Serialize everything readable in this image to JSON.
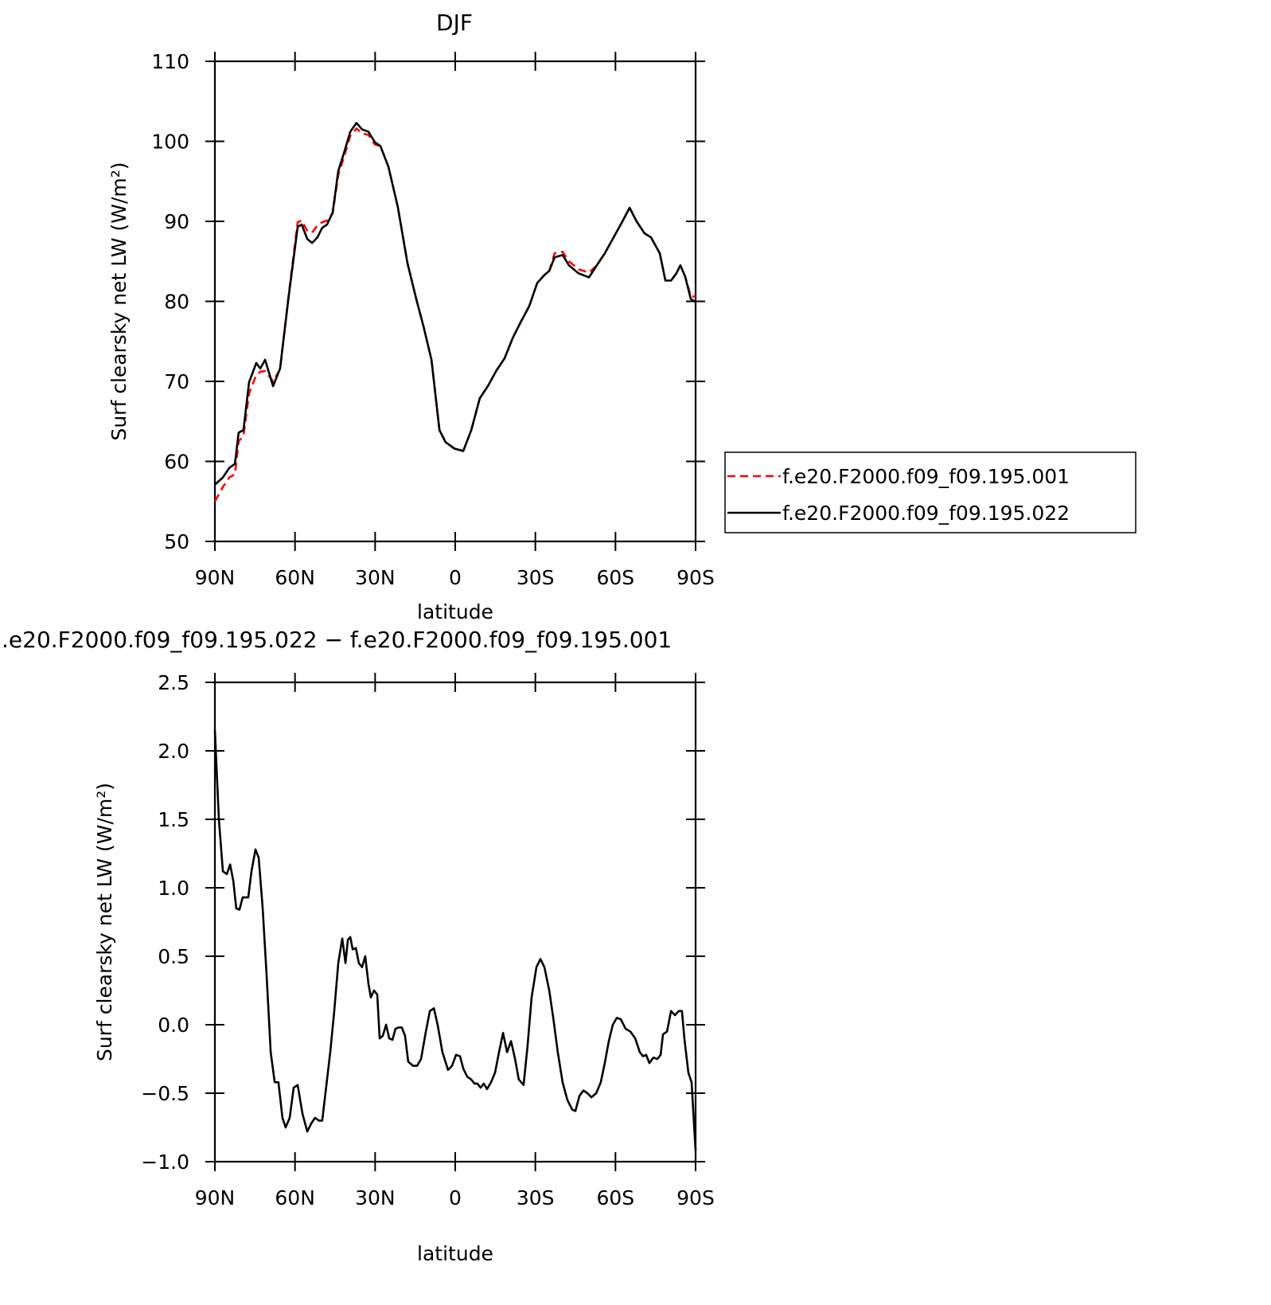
{
  "chart_data": [
    {
      "type": "line",
      "title": "DJF",
      "x_label": "latitude",
      "y_label": "Surf clearsky net LW (W/m²)",
      "xlim": [
        90,
        -90
      ],
      "xticks": [
        {
          "value": 90,
          "label": "90N"
        },
        {
          "value": 60,
          "label": "60N"
        },
        {
          "value": 30,
          "label": "30N"
        },
        0,
        {
          "value": -30,
          "label": "30S"
        },
        {
          "value": -60,
          "label": "60S"
        },
        {
          "value": -90,
          "label": "90S"
        }
      ],
      "ylim": [
        50,
        110
      ],
      "yticks": [
        50,
        60,
        70,
        80,
        90,
        100,
        110
      ],
      "legend": "right",
      "x": [
        90,
        87.0,
        84.6,
        82.5,
        81.1,
        79.3,
        77.2,
        74.5,
        73.0,
        71.2,
        68.2,
        65.6,
        62.3,
        59.0,
        57.5,
        55.4,
        53.6,
        51.6,
        49.8,
        48.0,
        45.9,
        43.8,
        41.7,
        39.3,
        37.0,
        34.9,
        32.5,
        30.1,
        28.0,
        25.0,
        21.5,
        17.9,
        14.6,
        11.9,
        8.9,
        5.9,
        3.6,
        0.3,
        -3.0,
        -6.0,
        -9.2,
        -12.2,
        -15.5,
        -18.5,
        -21.5,
        -24.5,
        -27.7,
        -30.7,
        -33.4,
        -35.2,
        -37.2,
        -40.2,
        -42.6,
        -46.2,
        -50.1,
        -53.0,
        -56.0,
        -59.3,
        -62.3,
        -65.3,
        -67.9,
        -70.9,
        -73.3,
        -76.6,
        -78.7,
        -80.8,
        -82.8,
        -84.3,
        -86.1,
        -88.2,
        -90
      ],
      "series": [
        {
          "name": "f.e20.F2000.f09_f09.195.001",
          "color": "#ff0000",
          "linestyle": "dashed",
          "values": [
            55.0,
            56.8,
            58.0,
            58.4,
            62.5,
            63.2,
            68.5,
            70.8,
            71.2,
            71.3,
            70.0,
            71.5,
            81.0,
            89.9,
            90.1,
            88.8,
            88.6,
            89.5,
            89.9,
            90.1,
            91.0,
            95.8,
            98.0,
            100.7,
            101.6,
            101.0,
            100.8,
            99.6,
            99.4,
            96.8,
            91.8,
            84.8,
            80.3,
            76.9,
            72.7,
            63.9,
            62.4,
            61.6,
            61.3,
            63.9,
            67.9,
            69.4,
            71.4,
            72.9,
            75.4,
            77.4,
            79.4,
            82.3,
            83.3,
            83.8,
            86.0,
            86.2,
            85.0,
            84.0,
            83.6,
            84.5,
            86.0,
            88.0,
            89.8,
            91.7,
            90.0,
            88.5,
            88.0,
            86.0,
            82.6,
            82.6,
            83.5,
            84.5,
            83.1,
            80.6,
            80.6
          ]
        },
        {
          "name": "f.e20.F2000.f09_f09.195.022",
          "color": "#000000",
          "linestyle": "solid",
          "values": [
            57.1,
            58.0,
            59.2,
            59.7,
            63.6,
            63.9,
            69.9,
            72.3,
            71.6,
            72.7,
            69.4,
            71.6,
            80.8,
            89.3,
            89.6,
            87.8,
            87.3,
            88.0,
            89.2,
            89.6,
            91.1,
            96.3,
            98.5,
            101.2,
            102.3,
            101.5,
            101.2,
            99.9,
            99.4,
            96.8,
            91.8,
            84.8,
            80.3,
            76.9,
            72.7,
            63.9,
            62.4,
            61.6,
            61.3,
            63.9,
            67.9,
            69.4,
            71.4,
            72.9,
            75.4,
            77.4,
            79.4,
            82.3,
            83.3,
            83.8,
            85.5,
            85.8,
            84.5,
            83.5,
            83.0,
            84.5,
            86.0,
            88.0,
            89.8,
            91.7,
            90.0,
            88.5,
            88.0,
            86.0,
            82.6,
            82.6,
            83.5,
            84.5,
            83.1,
            80.3,
            79.9
          ]
        }
      ]
    },
    {
      "type": "line",
      "title": ".e20.F2000.f09_f09.195.022 − f.e20.F2000.f09_f09.195.001",
      "x_label": "latitude",
      "y_label": "Surf clearsky net LW (W/m²)",
      "xlim": [
        90,
        -90
      ],
      "xticks": [
        {
          "value": 90,
          "label": "90N"
        },
        {
          "value": 60,
          "label": "60N"
        },
        {
          "value": 30,
          "label": "30N"
        },
        0,
        {
          "value": -30,
          "label": "30S"
        },
        {
          "value": -60,
          "label": "60S"
        },
        {
          "value": -90,
          "label": "90S"
        }
      ],
      "ylim": [
        -1,
        2.5
      ],
      "yticks": [
        {
          "value": -1,
          "label": "−1.0"
        },
        {
          "value": -0.5,
          "label": "−0.5"
        },
        {
          "value": 0,
          "label": "0.0"
        },
        0.5,
        {
          "value": 1,
          "label": "1.0"
        },
        1.5,
        {
          "value": 2,
          "label": "2.0"
        },
        2.5
      ],
      "color": "#000000",
      "x": [
        90,
        88.5,
        87.0,
        85.5,
        84.3,
        83.1,
        82.0,
        80.8,
        79.6,
        77.5,
        76.3,
        74.8,
        73.6,
        72.1,
        70.6,
        69.1,
        67.6,
        66.2,
        64.7,
        63.5,
        62.0,
        60.5,
        59.0,
        57.2,
        55.4,
        53.9,
        52.5,
        51.0,
        49.8,
        48.3,
        46.8,
        45.3,
        43.8,
        42.3,
        41.1,
        40.2,
        39.3,
        38.4,
        37.2,
        36.1,
        34.9,
        33.7,
        32.5,
        31.6,
        30.4,
        29.2,
        28.3,
        27.1,
        25.9,
        24.7,
        23.5,
        22.4,
        21.2,
        20.0,
        18.8,
        17.6,
        15.8,
        14.3,
        12.8,
        11.0,
        9.5,
        8.0,
        6.6,
        4.8,
        2.7,
        1.2,
        -0.3,
        -1.8,
        -3.0,
        -4.5,
        -6.0,
        -7.2,
        -8.3,
        -9.5,
        -10.7,
        -11.9,
        -13.4,
        -14.9,
        -16.4,
        -17.9,
        -19.4,
        -20.9,
        -22.4,
        -23.8,
        -25.6,
        -27.1,
        -28.6,
        -30.4,
        -31.9,
        -33.4,
        -35.2,
        -36.7,
        -38.4,
        -40.2,
        -42.0,
        -43.8,
        -45.0,
        -46.5,
        -48.0,
        -49.5,
        -51.0,
        -52.8,
        -54.5,
        -56.0,
        -57.5,
        -59.0,
        -60.5,
        -62.0,
        -63.8,
        -65.6,
        -67.4,
        -69.1,
        -70.3,
        -71.5,
        -72.7,
        -74.2,
        -75.7,
        -76.9,
        -77.8,
        -79.3,
        -80.8,
        -82.3,
        -83.7,
        -84.9,
        -85.8,
        -87.3,
        -88.5,
        -90
      ],
      "values": [
        2.15,
        1.5,
        1.12,
        1.1,
        1.17,
        1.05,
        0.85,
        0.84,
        0.93,
        0.93,
        1.12,
        1.28,
        1.22,
        0.85,
        0.35,
        -0.2,
        -0.42,
        -0.42,
        -0.68,
        -0.75,
        -0.68,
        -0.46,
        -0.44,
        -0.65,
        -0.78,
        -0.72,
        -0.68,
        -0.7,
        -0.7,
        -0.45,
        -0.2,
        0.1,
        0.45,
        0.63,
        0.45,
        0.62,
        0.64,
        0.55,
        0.56,
        0.45,
        0.42,
        0.5,
        0.3,
        0.2,
        0.25,
        0.22,
        -0.1,
        -0.08,
        0.0,
        -0.1,
        -0.11,
        -0.03,
        -0.02,
        -0.02,
        -0.08,
        -0.27,
        -0.3,
        -0.3,
        -0.25,
        -0.05,
        0.1,
        0.12,
        0.0,
        -0.2,
        -0.33,
        -0.3,
        -0.22,
        -0.23,
        -0.32,
        -0.38,
        -0.4,
        -0.43,
        -0.43,
        -0.46,
        -0.43,
        -0.47,
        -0.42,
        -0.35,
        -0.2,
        -0.06,
        -0.2,
        -0.12,
        -0.25,
        -0.4,
        -0.44,
        -0.15,
        0.2,
        0.42,
        0.48,
        0.42,
        0.25,
        0.05,
        -0.2,
        -0.42,
        -0.55,
        -0.62,
        -0.63,
        -0.52,
        -0.48,
        -0.5,
        -0.53,
        -0.5,
        -0.42,
        -0.28,
        -0.12,
        0.0,
        0.05,
        0.04,
        -0.03,
        -0.05,
        -0.1,
        -0.2,
        -0.23,
        -0.22,
        -0.28,
        -0.24,
        -0.25,
        -0.22,
        -0.07,
        -0.05,
        0.1,
        0.07,
        0.1,
        0.1,
        -0.1,
        -0.35,
        -0.42,
        -0.92
      ]
    }
  ]
}
